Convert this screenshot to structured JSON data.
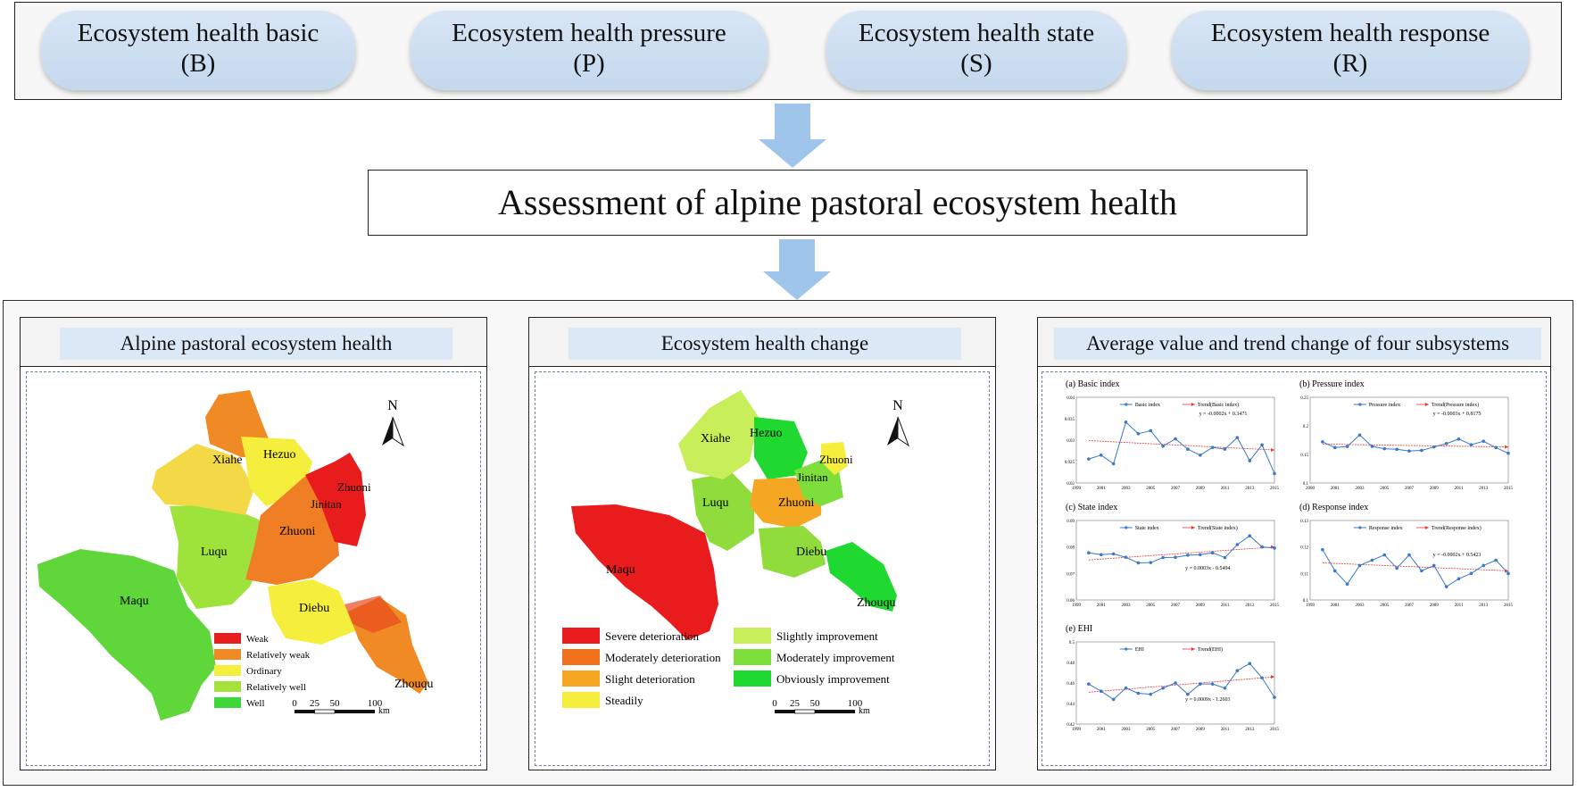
{
  "subsystems": [
    {
      "name": "Ecosystem health basic",
      "code": "(B)"
    },
    {
      "name": "Ecosystem health pressure",
      "code": "(P)"
    },
    {
      "name": "Ecosystem health state",
      "code": "(S)"
    },
    {
      "name": "Ecosystem health response",
      "code": "(R)"
    }
  ],
  "assessment_title": "Assessment of alpine pastoral  ecosystem health",
  "panels": {
    "health": {
      "title": "Alpine pastoral  ecosystem health",
      "north": "N",
      "regions": [
        "Xiahe",
        "Hezuo",
        "Zhuoni",
        "Jinitan",
        "Zhuoni",
        "Luqu",
        "Maqu",
        "Diebu",
        "Zhouqu"
      ],
      "legend": [
        {
          "label": "Weak",
          "color": "#e81c1c"
        },
        {
          "label": "Relatively weak",
          "color": "#f08a24"
        },
        {
          "label": "Ordinary",
          "color": "#f5ee3c"
        },
        {
          "label": "Relatively well",
          "color": "#a6e23c"
        },
        {
          "label": "Well",
          "color": "#3fd83a"
        }
      ],
      "scale": {
        "ticks": [
          "0",
          "25",
          "50",
          "100"
        ],
        "unit": "km"
      }
    },
    "change": {
      "title": "Ecosystem health change",
      "north": "N",
      "regions": [
        "Xiahe",
        "Hezuo",
        "Zhuoni",
        "Jinitan",
        "Zhuoni",
        "Luqu",
        "Maqu",
        "Diebu",
        "Zhouqu"
      ],
      "legend": [
        {
          "label": "Severe deterioration",
          "color": "#e81c1c"
        },
        {
          "label": "Moderately deterioration",
          "color": "#f0701c"
        },
        {
          "label": "Slight deterioration",
          "color": "#f5a623"
        },
        {
          "label": "Steadily",
          "color": "#f5ee3c"
        },
        {
          "label": "Slightly improvement",
          "color": "#c8ef5a"
        },
        {
          "label": "Moderately improvement",
          "color": "#7ede3c"
        },
        {
          "label": "Obviously improvement",
          "color": "#1fd830"
        }
      ],
      "scale": {
        "ticks": [
          "0",
          "25",
          "50",
          "100"
        ],
        "unit": "km"
      }
    },
    "trends": {
      "title": "Average value and trend change of  four subsystems"
    }
  },
  "chart_data": [
    {
      "type": "line",
      "title": "(a) Basic   index",
      "x": [
        2000,
        2001,
        2002,
        2003,
        2004,
        2005,
        2006,
        2007,
        2008,
        2009,
        2010,
        2011,
        2012,
        2013,
        2014,
        2015
      ],
      "series": [
        {
          "name": "Basic  index",
          "color": "#3a78c8",
          "values": [
            0.0256,
            0.0265,
            0.0245,
            0.0342,
            0.0315,
            0.0322,
            0.0286,
            0.0303,
            0.0279,
            0.0265,
            0.0283,
            0.0279,
            0.0306,
            0.0252,
            0.0289,
            0.0222
          ]
        },
        {
          "name": "Trend(Basic  index)",
          "color": "#e03a3a",
          "trend": [
            0.0299,
            0.0277
          ]
        }
      ],
      "equation": "y = -0.0002x + 0.3471",
      "ylim": [
        0.02,
        0.04
      ],
      "yticks": [
        0.02,
        0.025,
        0.03,
        0.035,
        0.04
      ],
      "ytick_labels": [
        "0.02",
        "0.025",
        "0.03",
        "0.035",
        "0.04"
      ],
      "xticks": [
        "1999",
        "2001",
        "2003",
        "2005",
        "2007",
        "2009",
        "2011",
        "2013",
        "2015"
      ],
      "xlim": [
        1999,
        2015
      ]
    },
    {
      "type": "line",
      "title": "(b) Pressure index",
      "x": [
        2000,
        2001,
        2002,
        2003,
        2004,
        2005,
        2006,
        2007,
        2008,
        2009,
        2010,
        2011,
        2012,
        2013,
        2014,
        2015
      ],
      "series": [
        {
          "name": "Pressure index",
          "color": "#3a78c8",
          "values": [
            0.172,
            0.162,
            0.164,
            0.184,
            0.164,
            0.16,
            0.159,
            0.156,
            0.157,
            0.163,
            0.169,
            0.177,
            0.167,
            0.173,
            0.162,
            0.152
          ]
        },
        {
          "name": "Trend(Pressure index)",
          "color": "#e03a3a",
          "trend": [
            0.168,
            0.163
          ]
        }
      ],
      "equation": "y = -0.0003x + 0.8175",
      "ylim": [
        0.1,
        0.25
      ],
      "yticks": [
        0.1,
        0.15,
        0.2,
        0.25
      ],
      "ytick_labels": [
        "0.1",
        "0.15",
        "0.2",
        "0.25"
      ],
      "xticks": [
        "2000",
        "2001",
        "2003",
        "2005",
        "2007",
        "2009",
        "2011",
        "2013",
        "2015"
      ],
      "xlim": [
        1999,
        2015
      ]
    },
    {
      "type": "line",
      "title": "(c) State index",
      "x": [
        2000,
        2001,
        2002,
        2003,
        2004,
        2005,
        2006,
        2007,
        2008,
        2009,
        2010,
        2011,
        2012,
        2013,
        2014,
        2015
      ],
      "series": [
        {
          "name": "State index",
          "color": "#3a78c8",
          "values": [
            0.0778,
            0.0771,
            0.0774,
            0.0761,
            0.074,
            0.0741,
            0.076,
            0.0761,
            0.0769,
            0.0771,
            0.0778,
            0.076,
            0.0809,
            0.0842,
            0.08,
            0.0796
          ]
        },
        {
          "name": "Trend(State index)",
          "color": "#e03a3a",
          "trend": [
            0.0751,
            0.08
          ]
        }
      ],
      "equation": "y = 0.0003x - 0.5494",
      "ylim": [
        0.06,
        0.09
      ],
      "yticks": [
        0.06,
        0.07,
        0.08,
        0.09
      ],
      "ytick_labels": [
        "0.06",
        "0.07",
        "0.08",
        "0.09"
      ],
      "xticks": [
        "1999",
        "2001",
        "2003",
        "2005",
        "2007",
        "2009",
        "2011",
        "2013",
        "2015"
      ],
      "xlim": [
        1999,
        2015
      ]
    },
    {
      "type": "line",
      "title": "(d) Response index",
      "x": [
        2000,
        2001,
        2002,
        2003,
        2004,
        2005,
        2006,
        2007,
        2008,
        2009,
        2010,
        2011,
        2012,
        2013,
        2014,
        2015
      ],
      "series": [
        {
          "name": "Response index",
          "color": "#3a78c8",
          "values": [
            0.119,
            0.111,
            0.106,
            0.113,
            0.115,
            0.117,
            0.112,
            0.117,
            0.111,
            0.113,
            0.105,
            0.108,
            0.11,
            0.113,
            0.115,
            0.11
          ]
        },
        {
          "name": "Trend(Response index)",
          "color": "#e03a3a",
          "trend": [
            0.114,
            0.111
          ]
        }
      ],
      "equation": "y = -0.0002x + 0.5423",
      "ylim": [
        0.1,
        0.13
      ],
      "yticks": [
        0.1,
        0.11,
        0.12,
        0.13
      ],
      "ytick_labels": [
        "0.1",
        "0.11",
        "0.12",
        "0.13"
      ],
      "xticks": [
        "1999",
        "2001",
        "2003",
        "2005",
        "2007",
        "2009",
        "2011",
        "2013",
        "2015"
      ],
      "xlim": [
        1999,
        2015
      ]
    },
    {
      "type": "line",
      "title": "(e) EHI",
      "x": [
        2000,
        2001,
        2002,
        2003,
        2004,
        2005,
        2006,
        2007,
        2008,
        2009,
        2010,
        2011,
        2012,
        2013,
        2014,
        2015
      ],
      "series": [
        {
          "name": "EHI",
          "color": "#3a78c8",
          "values": [
            0.459,
            0.452,
            0.444,
            0.455,
            0.45,
            0.449,
            0.455,
            0.46,
            0.449,
            0.459,
            0.459,
            0.455,
            0.472,
            0.479,
            0.465,
            0.446
          ]
        },
        {
          "name": "Trend(EHI)",
          "color": "#e03a3a",
          "trend": [
            0.451,
            0.466
          ]
        }
      ],
      "equation": "y = 0.0009x - 1.2603",
      "ylim": [
        0.42,
        0.5
      ],
      "yticks": [
        0.42,
        0.44,
        0.46,
        0.48,
        0.5
      ],
      "ytick_labels": [
        "0.42",
        "0.44",
        "0.46",
        "0.48",
        "0.5"
      ],
      "xticks": [
        "1999",
        "2001",
        "2003",
        "2005",
        "2007",
        "2009",
        "2011",
        "2013",
        "2015"
      ],
      "xlim": [
        1999,
        2015
      ]
    }
  ]
}
